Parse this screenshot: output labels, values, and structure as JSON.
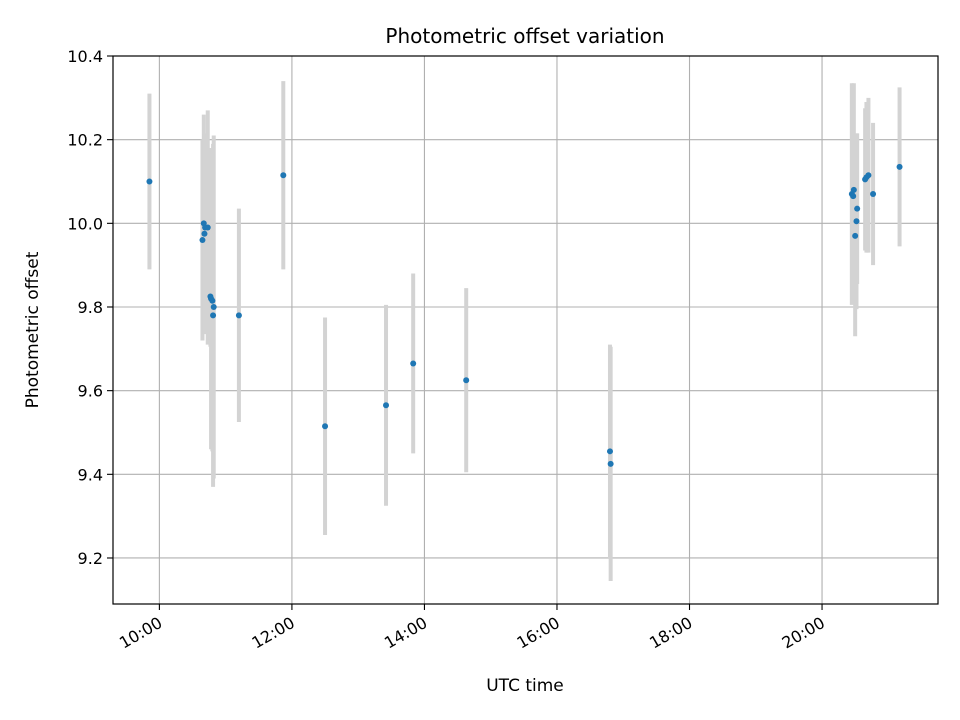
{
  "chart_data": {
    "type": "scatter",
    "title": "Photometric offset variation",
    "xlabel": "UTC time",
    "ylabel": "Photometric offset",
    "x_ticks": [
      10,
      12,
      14,
      16,
      18,
      20
    ],
    "x_tick_labels": [
      "10:00",
      "12:00",
      "14:00",
      "16:00",
      "18:00",
      "20:00"
    ],
    "y_ticks": [
      9.2,
      9.4,
      9.6,
      9.8,
      10.0,
      10.2,
      10.4
    ],
    "y_tick_labels": [
      "9.2",
      "9.4",
      "9.6",
      "9.8",
      "10.0",
      "10.2",
      "10.4"
    ],
    "xlim": [
      9.3,
      21.75
    ],
    "ylim": [
      9.09,
      10.4
    ],
    "grid": true,
    "point_color": "#1f77b4",
    "errorbar_color": "#d3d3d3",
    "points": [
      {
        "x": 9.85,
        "y": 10.1,
        "err": 0.21
      },
      {
        "x": 10.65,
        "y": 9.96,
        "err": 0.24
      },
      {
        "x": 10.67,
        "y": 10.0,
        "err": 0.26
      },
      {
        "x": 10.68,
        "y": 9.975,
        "err": 0.24
      },
      {
        "x": 10.69,
        "y": 9.99,
        "err": 0.22
      },
      {
        "x": 10.73,
        "y": 9.99,
        "err": 0.28
      },
      {
        "x": 10.77,
        "y": 9.825,
        "err": 0.12
      },
      {
        "x": 10.78,
        "y": 9.82,
        "err": 0.36
      },
      {
        "x": 10.8,
        "y": 9.815,
        "err": 0.36
      },
      {
        "x": 10.81,
        "y": 9.78,
        "err": 0.41
      },
      {
        "x": 10.82,
        "y": 9.8,
        "err": 0.41
      },
      {
        "x": 11.2,
        "y": 9.78,
        "err": 0.255
      },
      {
        "x": 11.87,
        "y": 10.115,
        "err": 0.225
      },
      {
        "x": 12.5,
        "y": 9.515,
        "err": 0.26
      },
      {
        "x": 13.42,
        "y": 9.565,
        "err": 0.24
      },
      {
        "x": 13.83,
        "y": 9.665,
        "err": 0.215
      },
      {
        "x": 14.63,
        "y": 9.625,
        "err": 0.22
      },
      {
        "x": 16.8,
        "y": 9.455,
        "err": 0.255
      },
      {
        "x": 16.81,
        "y": 9.425,
        "err": 0.28
      },
      {
        "x": 20.45,
        "y": 10.07,
        "err": 0.265
      },
      {
        "x": 20.47,
        "y": 10.065,
        "err": 0.21
      },
      {
        "x": 20.48,
        "y": 10.08,
        "err": 0.255
      },
      {
        "x": 20.5,
        "y": 9.97,
        "err": 0.24
      },
      {
        "x": 20.52,
        "y": 10.005,
        "err": 0.21
      },
      {
        "x": 20.53,
        "y": 10.035,
        "err": 0.18
      },
      {
        "x": 20.65,
        "y": 10.105,
        "err": 0.17
      },
      {
        "x": 20.67,
        "y": 10.11,
        "err": 0.18
      },
      {
        "x": 20.7,
        "y": 10.115,
        "err": 0.185
      },
      {
        "x": 20.77,
        "y": 10.07,
        "err": 0.17
      },
      {
        "x": 21.17,
        "y": 10.135,
        "err": 0.19
      }
    ]
  }
}
